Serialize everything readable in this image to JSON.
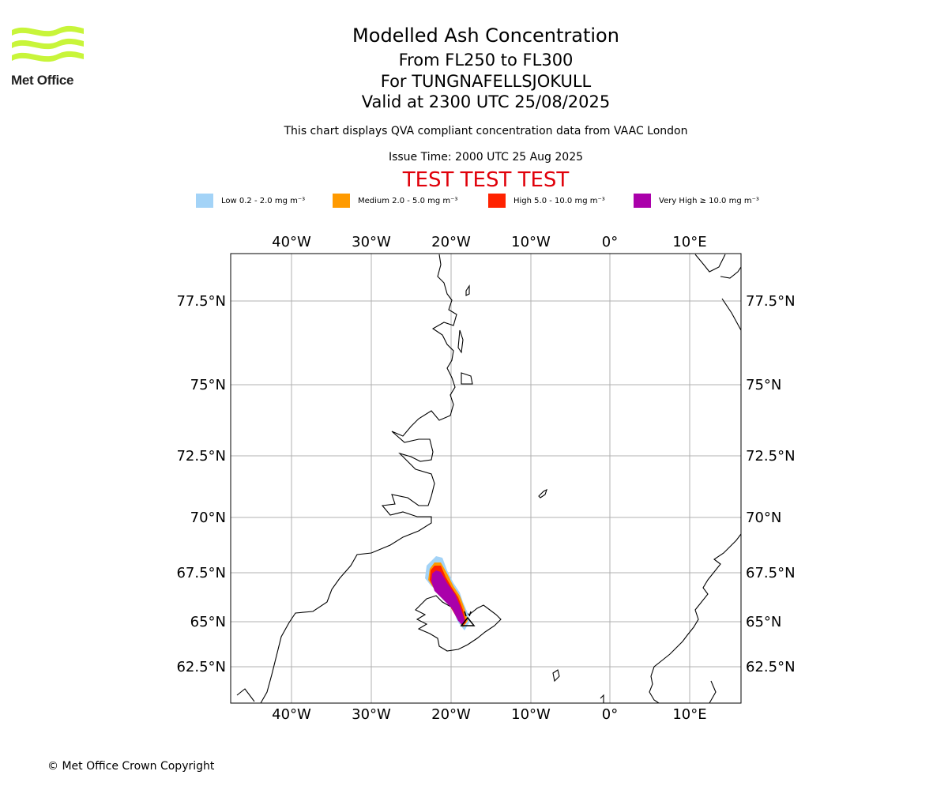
{
  "header": {
    "logo_text": "Met Office",
    "title": "Modelled Ash Concentration",
    "level_range": "From FL250 to FL300",
    "volcano": "For TUNGNAFELLSJOKULL",
    "valid_time": "Valid at 2300 UTC 25/08/2025",
    "note": "This chart displays QVA compliant concentration data from VAAC London",
    "issue_time": "Issue Time: 2000 UTC 25 Aug 2025",
    "test_banner": "TEST TEST TEST"
  },
  "legend": [
    {
      "label": "Low 0.2 - 2.0 mg m⁻³",
      "color": "#a3d3f7"
    },
    {
      "label": "Medium 2.0 - 5.0 mg m⁻³",
      "color": "#ff9a00"
    },
    {
      "label": "High 5.0 - 10.0 mg m⁻³",
      "color": "#ff2200"
    },
    {
      "label": "Very High ≥ 10.0 mg m⁻³",
      "color": "#aa00aa"
    }
  ],
  "map": {
    "lon_labels": [
      "40°W",
      "30°W",
      "20°W",
      "10°W",
      "0°",
      "10°E"
    ],
    "lat_labels": [
      "77.5°N",
      "75°N",
      "72.5°N",
      "70°N",
      "67.5°N",
      "65°N",
      "62.5°N"
    ],
    "volcano_marker": "triangle-icon"
  },
  "footer": {
    "copyright": "© Met Office Crown Copyright"
  }
}
